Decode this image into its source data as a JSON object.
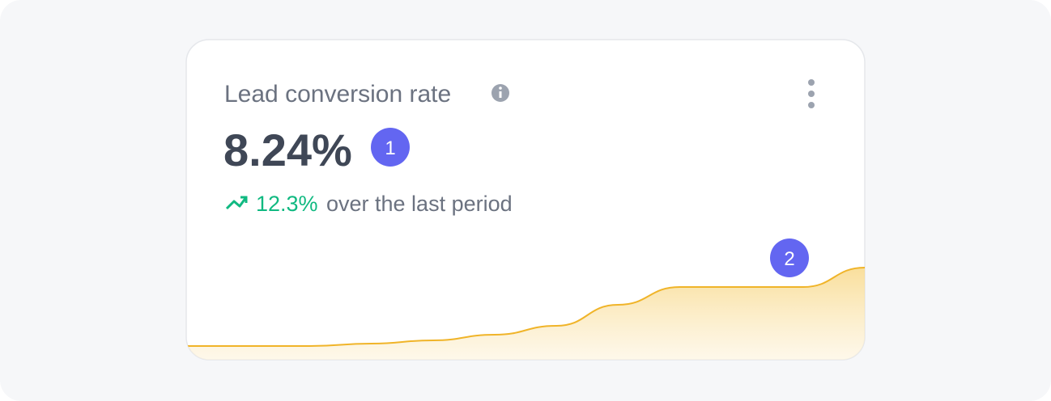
{
  "card": {
    "title": "Lead conversion rate",
    "value": "8.24%",
    "value_badge": "1",
    "change": "12.3%",
    "change_text": "over the last period",
    "sparkline": {
      "type": "area",
      "color": "#f0b429",
      "values": [
        17,
        17,
        17,
        20,
        24,
        31,
        42,
        68,
        90,
        90,
        90,
        114
      ]
    },
    "sparkline_badge": "2"
  }
}
